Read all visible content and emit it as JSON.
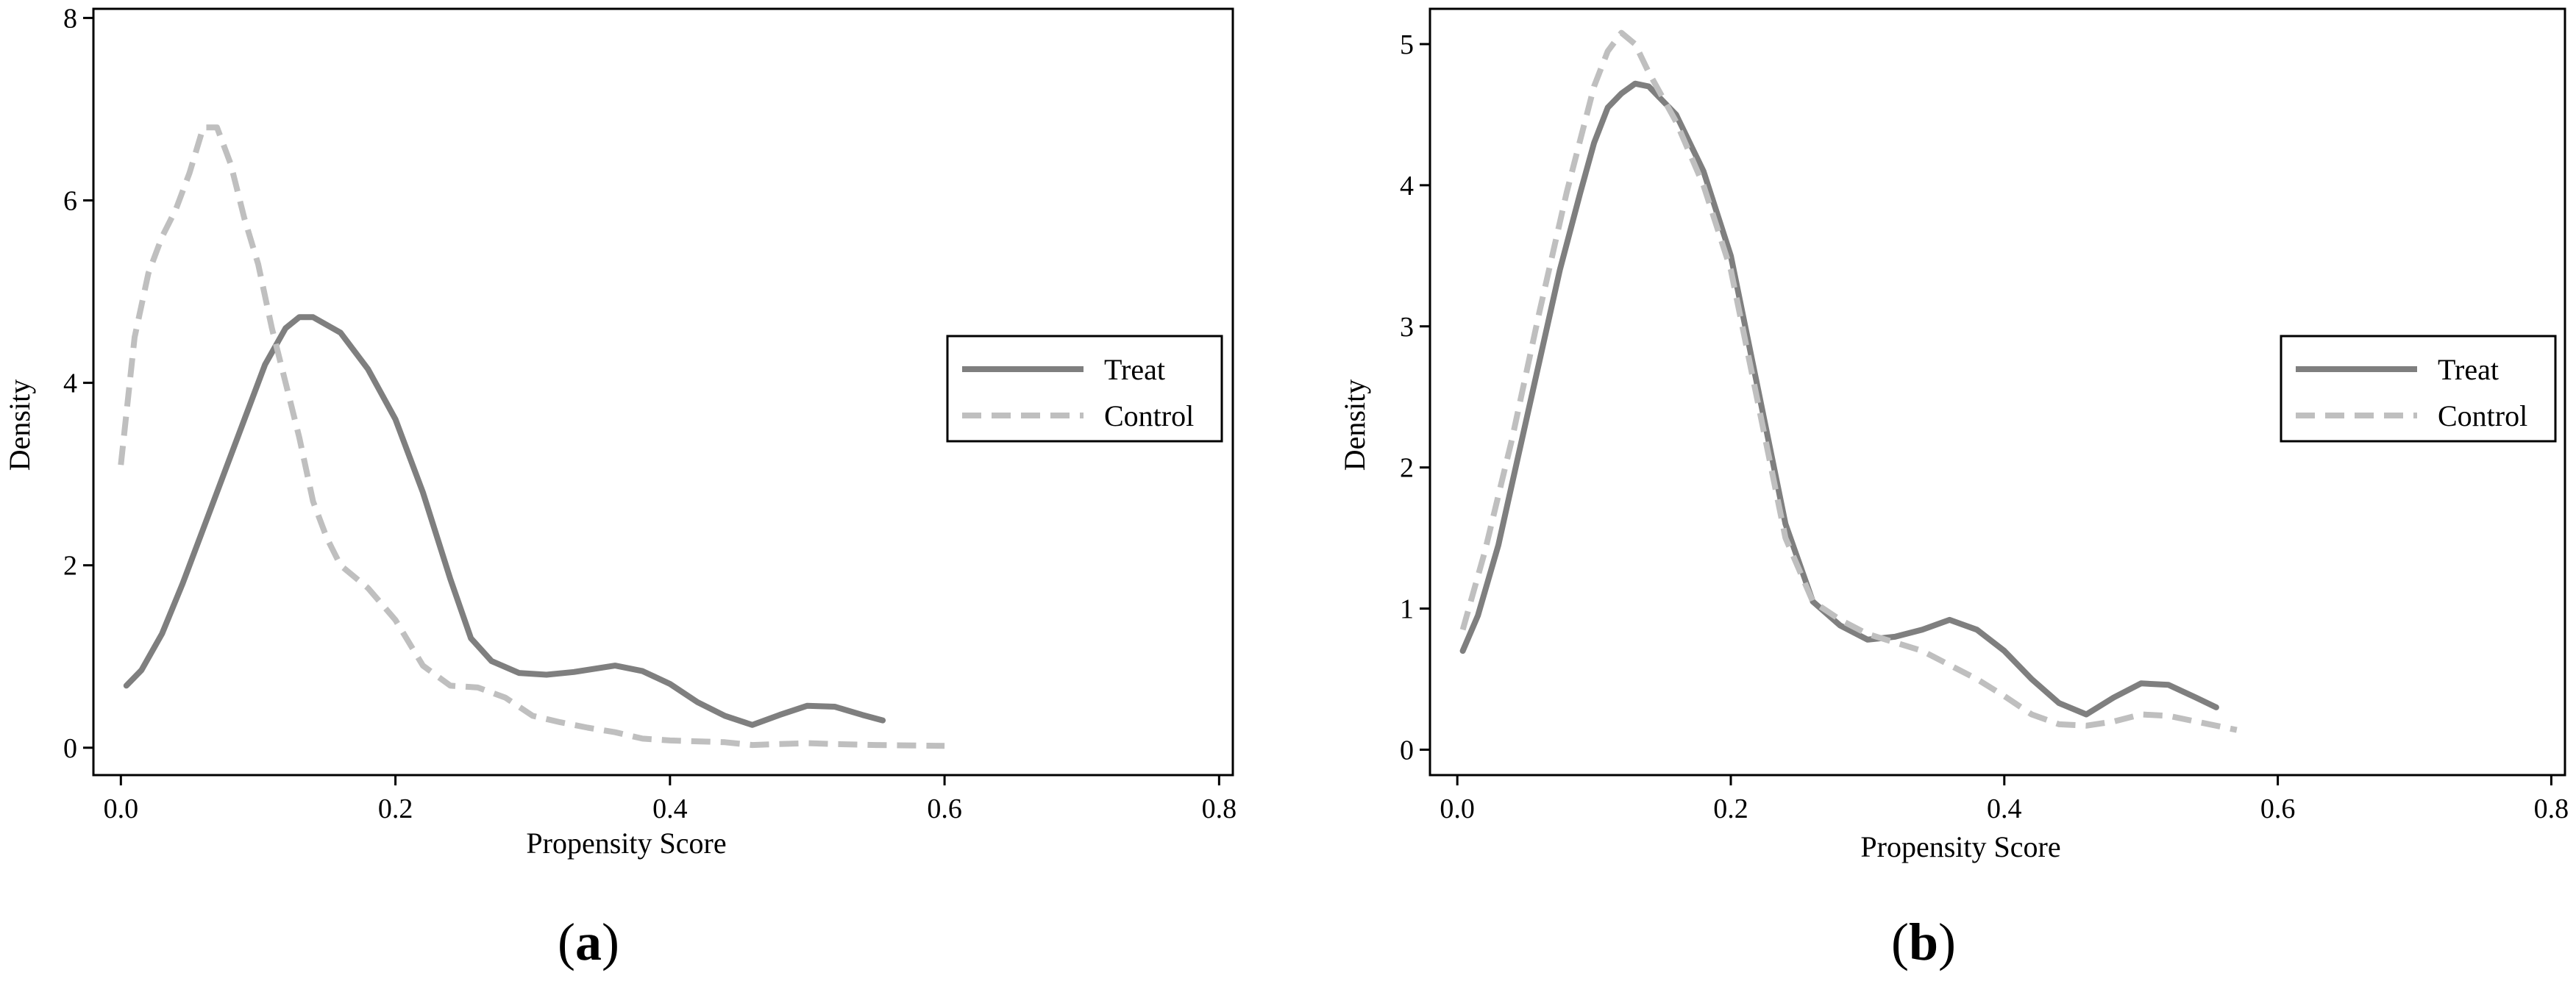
{
  "chart_data": [
    {
      "type": "line",
      "panel_label": "a",
      "xlabel": "Propensity Score",
      "ylabel": "Density",
      "xlim": [
        -0.02,
        0.81
      ],
      "ylim": [
        -0.3,
        8.1
      ],
      "xticks": [
        0,
        0.2,
        0.4,
        0.6,
        0.8
      ],
      "xtick_labels": [
        "0.0",
        "0.2",
        "0.4",
        "0.6",
        "0.8"
      ],
      "yticks": [
        0,
        2,
        4,
        6,
        8
      ],
      "ytick_labels": [
        "0",
        "2",
        "4",
        "6",
        "8"
      ],
      "grid": false,
      "legend_position": "right",
      "series": [
        {
          "name": "Treat",
          "color": "#7f7f7f",
          "dash": "solid",
          "points": [
            [
              0.004,
              0.68
            ],
            [
              0.015,
              0.85
            ],
            [
              0.03,
              1.25
            ],
            [
              0.045,
              1.8
            ],
            [
              0.06,
              2.4
            ],
            [
              0.075,
              3.0
            ],
            [
              0.09,
              3.6
            ],
            [
              0.105,
              4.2
            ],
            [
              0.12,
              4.6
            ],
            [
              0.13,
              4.72
            ],
            [
              0.14,
              4.72
            ],
            [
              0.16,
              4.55
            ],
            [
              0.18,
              4.15
            ],
            [
              0.2,
              3.6
            ],
            [
              0.22,
              2.8
            ],
            [
              0.24,
              1.85
            ],
            [
              0.255,
              1.2
            ],
            [
              0.27,
              0.95
            ],
            [
              0.29,
              0.82
            ],
            [
              0.31,
              0.8
            ],
            [
              0.33,
              0.83
            ],
            [
              0.36,
              0.9
            ],
            [
              0.38,
              0.84
            ],
            [
              0.4,
              0.7
            ],
            [
              0.42,
              0.5
            ],
            [
              0.44,
              0.35
            ],
            [
              0.46,
              0.25
            ],
            [
              0.48,
              0.36
            ],
            [
              0.5,
              0.46
            ],
            [
              0.52,
              0.45
            ],
            [
              0.54,
              0.36
            ],
            [
              0.555,
              0.3
            ]
          ]
        },
        {
          "name": "Control",
          "color": "#bfbfbf",
          "dash": "dashed",
          "points": [
            [
              0.0,
              3.1
            ],
            [
              0.01,
              4.5
            ],
            [
              0.02,
              5.2
            ],
            [
              0.03,
              5.6
            ],
            [
              0.04,
              5.9
            ],
            [
              0.05,
              6.3
            ],
            [
              0.06,
              6.8
            ],
            [
              0.07,
              6.8
            ],
            [
              0.08,
              6.4
            ],
            [
              0.09,
              5.8
            ],
            [
              0.1,
              5.3
            ],
            [
              0.11,
              4.6
            ],
            [
              0.12,
              4.0
            ],
            [
              0.13,
              3.4
            ],
            [
              0.14,
              2.7
            ],
            [
              0.15,
              2.3
            ],
            [
              0.16,
              2.0
            ],
            [
              0.18,
              1.75
            ],
            [
              0.2,
              1.4
            ],
            [
              0.22,
              0.9
            ],
            [
              0.24,
              0.68
            ],
            [
              0.26,
              0.66
            ],
            [
              0.28,
              0.55
            ],
            [
              0.3,
              0.35
            ],
            [
              0.32,
              0.28
            ],
            [
              0.34,
              0.22
            ],
            [
              0.36,
              0.17
            ],
            [
              0.38,
              0.1
            ],
            [
              0.4,
              0.08
            ],
            [
              0.42,
              0.07
            ],
            [
              0.44,
              0.06
            ],
            [
              0.46,
              0.03
            ],
            [
              0.48,
              0.04
            ],
            [
              0.5,
              0.05
            ],
            [
              0.52,
              0.04
            ],
            [
              0.55,
              0.03
            ],
            [
              0.6,
              0.02
            ]
          ]
        }
      ]
    },
    {
      "type": "line",
      "panel_label": "b",
      "xlabel": "Propensity Score",
      "ylabel": "Density",
      "xlim": [
        -0.02,
        0.81
      ],
      "ylim": [
        -0.18,
        5.25
      ],
      "xticks": [
        0,
        0.2,
        0.4,
        0.6,
        0.8
      ],
      "xtick_labels": [
        "0.0",
        "0.2",
        "0.4",
        "0.6",
        "0.8"
      ],
      "yticks": [
        0,
        1,
        2,
        3,
        4,
        5
      ],
      "ytick_labels": [
        "0",
        "1",
        "2",
        "3",
        "4",
        "5"
      ],
      "grid": false,
      "legend_position": "right",
      "series": [
        {
          "name": "Treat",
          "color": "#7f7f7f",
          "dash": "solid",
          "points": [
            [
              0.004,
              0.7
            ],
            [
              0.015,
              0.95
            ],
            [
              0.03,
              1.45
            ],
            [
              0.045,
              2.1
            ],
            [
              0.06,
              2.75
            ],
            [
              0.075,
              3.4
            ],
            [
              0.09,
              3.95
            ],
            [
              0.1,
              4.3
            ],
            [
              0.11,
              4.55
            ],
            [
              0.12,
              4.65
            ],
            [
              0.13,
              4.72
            ],
            [
              0.14,
              4.7
            ],
            [
              0.16,
              4.5
            ],
            [
              0.18,
              4.1
            ],
            [
              0.2,
              3.5
            ],
            [
              0.22,
              2.55
            ],
            [
              0.24,
              1.6
            ],
            [
              0.26,
              1.05
            ],
            [
              0.28,
              0.88
            ],
            [
              0.3,
              0.78
            ],
            [
              0.32,
              0.8
            ],
            [
              0.34,
              0.85
            ],
            [
              0.36,
              0.92
            ],
            [
              0.38,
              0.85
            ],
            [
              0.4,
              0.7
            ],
            [
              0.42,
              0.5
            ],
            [
              0.44,
              0.33
            ],
            [
              0.46,
              0.25
            ],
            [
              0.48,
              0.37
            ],
            [
              0.5,
              0.47
            ],
            [
              0.52,
              0.46
            ],
            [
              0.54,
              0.37
            ],
            [
              0.555,
              0.3
            ]
          ]
        },
        {
          "name": "Control",
          "color": "#bfbfbf",
          "dash": "dashed",
          "points": [
            [
              0.004,
              0.85
            ],
            [
              0.02,
              1.4
            ],
            [
              0.04,
              2.2
            ],
            [
              0.06,
              3.1
            ],
            [
              0.08,
              3.95
            ],
            [
              0.1,
              4.7
            ],
            [
              0.11,
              4.95
            ],
            [
              0.12,
              5.08
            ],
            [
              0.13,
              5.0
            ],
            [
              0.14,
              4.8
            ],
            [
              0.16,
              4.45
            ],
            [
              0.18,
              4.0
            ],
            [
              0.2,
              3.4
            ],
            [
              0.22,
              2.45
            ],
            [
              0.24,
              1.5
            ],
            [
              0.26,
              1.05
            ],
            [
              0.28,
              0.92
            ],
            [
              0.3,
              0.82
            ],
            [
              0.32,
              0.76
            ],
            [
              0.34,
              0.7
            ],
            [
              0.36,
              0.6
            ],
            [
              0.38,
              0.5
            ],
            [
              0.4,
              0.38
            ],
            [
              0.42,
              0.25
            ],
            [
              0.44,
              0.18
            ],
            [
              0.46,
              0.17
            ],
            [
              0.48,
              0.2
            ],
            [
              0.5,
              0.25
            ],
            [
              0.52,
              0.24
            ],
            [
              0.54,
              0.2
            ],
            [
              0.57,
              0.14
            ]
          ]
        }
      ]
    }
  ]
}
